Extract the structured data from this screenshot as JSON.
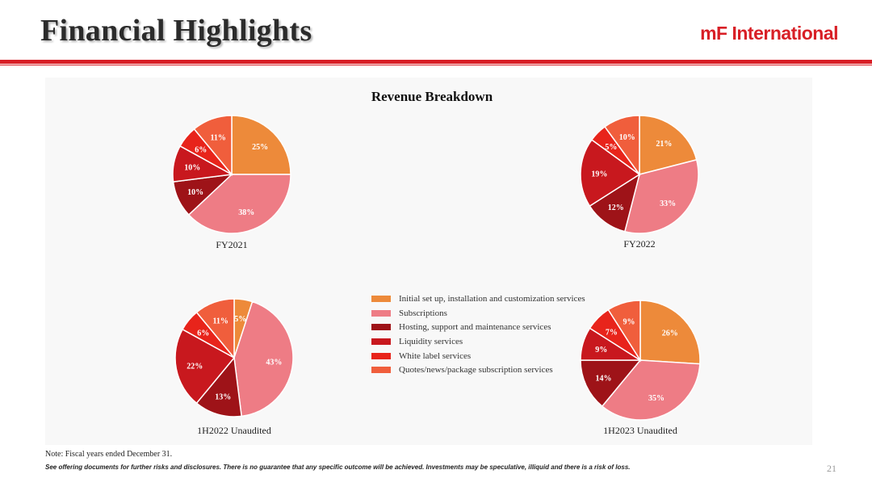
{
  "header": {
    "title": "Financial Highlights",
    "brand": "mF International"
  },
  "colors": {
    "accent": "#d81f26",
    "series": [
      "#ED8A3A",
      "#EE7C85",
      "#9E1318",
      "#C8181E",
      "#E8241B",
      "#F05E3C"
    ]
  },
  "chart_data": {
    "type": "pie",
    "title": "Revenue Breakdown",
    "legend_position": "center",
    "legend": [
      "Initial set up, installation and customization services",
      "Subscriptions",
      "Hosting, support and maintenance services",
      "Liquidity services",
      "White label services",
      "Quotes/news/package subscription services"
    ],
    "pies": [
      {
        "label": "FY2021",
        "values": [
          25,
          38,
          10,
          10,
          6,
          11
        ]
      },
      {
        "label": "FY2022",
        "values": [
          21,
          33,
          12,
          19,
          5,
          10
        ]
      },
      {
        "label": "1H2022 Unaudited",
        "values": [
          5,
          43,
          13,
          22,
          6,
          11
        ]
      },
      {
        "label": "1H2023 Unaudited",
        "values": [
          26,
          35,
          14,
          9,
          7,
          9
        ]
      }
    ]
  },
  "footer": {
    "note": "Note: Fiscal years ended December 31.",
    "disclaimer": "See offering documents for further risks and disclosures. There is no guarantee that any specific outcome will be achieved. Investments may be speculative, illiquid and there is a risk of loss.",
    "page_number": "21"
  }
}
